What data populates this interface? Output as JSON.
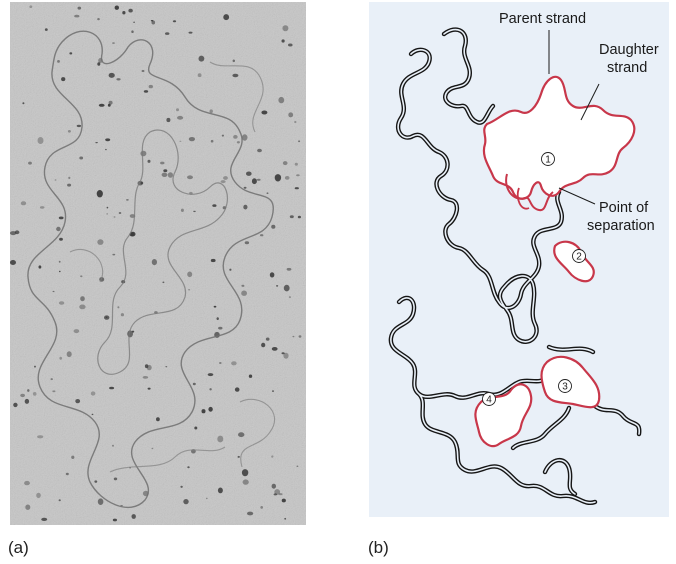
{
  "panels": [
    {
      "letter": "(a)"
    },
    {
      "letter": "(b)"
    }
  ],
  "labels": {
    "parent_strand": "Parent strand",
    "daughter_strand_line1": "Daughter",
    "daughter_strand_line2": "strand",
    "point_of_separation_line1": "Point of",
    "point_of_separation_line2": "separation"
  },
  "bubbles": [
    "1",
    "2",
    "3",
    "4"
  ],
  "colors": {
    "panel_b_background": "#e9f0f8",
    "parent_strand": "#1a1a1a",
    "daughter_strand": "#c8374a",
    "micrograph_background": "#c7c7c7"
  }
}
